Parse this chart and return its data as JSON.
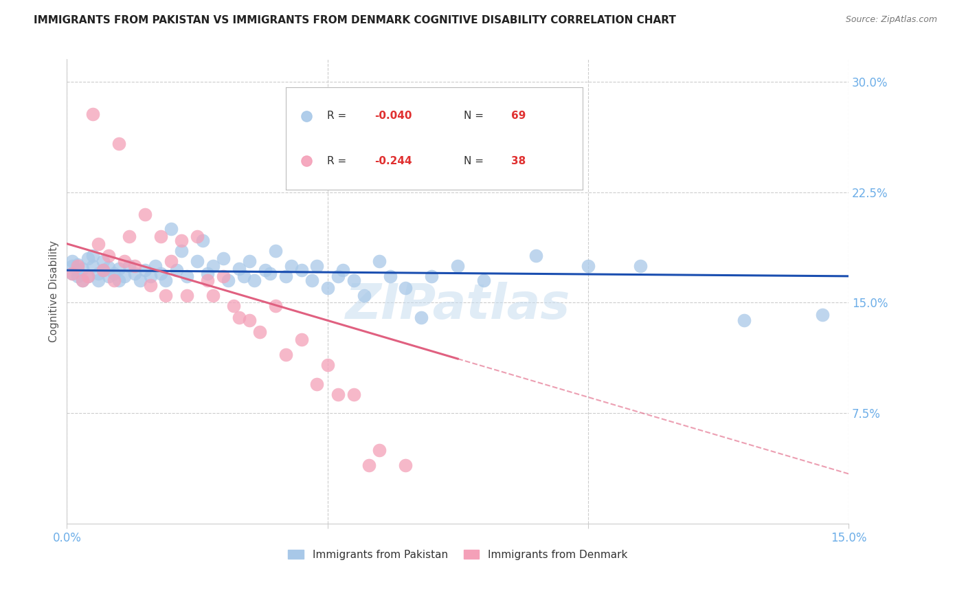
{
  "title": "IMMIGRANTS FROM PAKISTAN VS IMMIGRANTS FROM DENMARK COGNITIVE DISABILITY CORRELATION CHART",
  "source": "Source: ZipAtlas.com",
  "ylabel": "Cognitive Disability",
  "yticks": [
    "30.0%",
    "22.5%",
    "15.0%",
    "7.5%"
  ],
  "ytick_vals": [
    0.3,
    0.225,
    0.15,
    0.075
  ],
  "xmin": 0.0,
  "xmax": 0.15,
  "ymin": 0.0,
  "ymax": 0.315,
  "label1": "Immigrants from Pakistan",
  "label2": "Immigrants from Denmark",
  "color1": "#a8c8e8",
  "color2": "#f4a0b8",
  "line_color1": "#1a4eb0",
  "line_color2": "#e06080",
  "axis_color": "#6daee8",
  "grid_color": "#cccccc",
  "pakistan_x": [
    0.001,
    0.001,
    0.001,
    0.002,
    0.002,
    0.002,
    0.003,
    0.003,
    0.004,
    0.004,
    0.005,
    0.005,
    0.006,
    0.006,
    0.007,
    0.007,
    0.008,
    0.008,
    0.009,
    0.01,
    0.01,
    0.011,
    0.012,
    0.013,
    0.014,
    0.015,
    0.016,
    0.017,
    0.018,
    0.019,
    0.02,
    0.021,
    0.022,
    0.023,
    0.025,
    0.026,
    0.027,
    0.028,
    0.03,
    0.031,
    0.033,
    0.034,
    0.035,
    0.036,
    0.038,
    0.039,
    0.04,
    0.042,
    0.043,
    0.045,
    0.047,
    0.048,
    0.05,
    0.052,
    0.053,
    0.055,
    0.057,
    0.06,
    0.062,
    0.065,
    0.068,
    0.07,
    0.075,
    0.08,
    0.09,
    0.1,
    0.11,
    0.13,
    0.145
  ],
  "pakistan_y": [
    0.17,
    0.175,
    0.178,
    0.172,
    0.168,
    0.176,
    0.165,
    0.173,
    0.168,
    0.18,
    0.175,
    0.182,
    0.17,
    0.165,
    0.172,
    0.178,
    0.168,
    0.174,
    0.17,
    0.165,
    0.173,
    0.168,
    0.175,
    0.17,
    0.165,
    0.172,
    0.168,
    0.175,
    0.17,
    0.165,
    0.2,
    0.172,
    0.185,
    0.168,
    0.178,
    0.192,
    0.17,
    0.175,
    0.18,
    0.165,
    0.173,
    0.168,
    0.178,
    0.165,
    0.172,
    0.17,
    0.185,
    0.168,
    0.175,
    0.172,
    0.165,
    0.175,
    0.16,
    0.168,
    0.172,
    0.165,
    0.155,
    0.178,
    0.168,
    0.16,
    0.14,
    0.168,
    0.175,
    0.165,
    0.182,
    0.175,
    0.175,
    0.138,
    0.142
  ],
  "denmark_x": [
    0.001,
    0.002,
    0.003,
    0.004,
    0.005,
    0.006,
    0.007,
    0.008,
    0.009,
    0.01,
    0.011,
    0.012,
    0.013,
    0.015,
    0.016,
    0.018,
    0.019,
    0.02,
    0.022,
    0.023,
    0.025,
    0.027,
    0.028,
    0.03,
    0.032,
    0.033,
    0.035,
    0.037,
    0.04,
    0.042,
    0.045,
    0.048,
    0.05,
    0.052,
    0.055,
    0.058,
    0.06,
    0.065
  ],
  "denmark_y": [
    0.17,
    0.175,
    0.165,
    0.168,
    0.278,
    0.19,
    0.172,
    0.182,
    0.165,
    0.258,
    0.178,
    0.195,
    0.175,
    0.21,
    0.162,
    0.195,
    0.155,
    0.178,
    0.192,
    0.155,
    0.195,
    0.165,
    0.155,
    0.168,
    0.148,
    0.14,
    0.138,
    0.13,
    0.148,
    0.115,
    0.125,
    0.095,
    0.108,
    0.088,
    0.088,
    0.04,
    0.05,
    0.04
  ],
  "pak_line_x0": 0.0,
  "pak_line_x1": 0.15,
  "pak_line_y0": 0.172,
  "pak_line_y1": 0.168,
  "den_line_x0": 0.0,
  "den_line_x1": 0.075,
  "den_line_y0": 0.19,
  "den_line_y1": 0.112
}
